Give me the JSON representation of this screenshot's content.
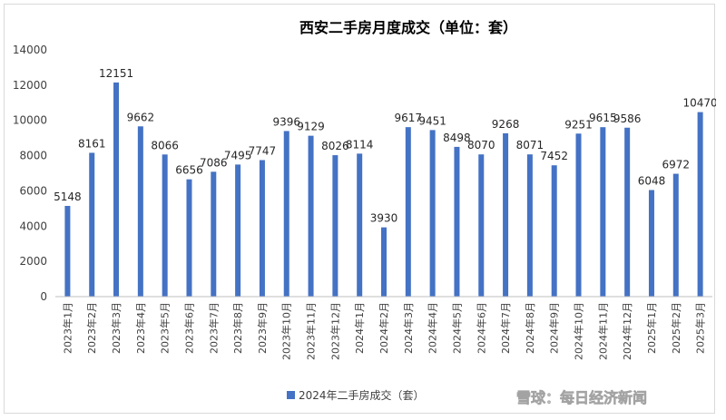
{
  "chart_data": {
    "type": "bar",
    "title": "西安二手房月度成交（单位：套）",
    "xlabel": "",
    "ylabel": "",
    "ylim": [
      0,
      14000
    ],
    "yticks": [
      0,
      2000,
      4000,
      6000,
      8000,
      10000,
      12000,
      14000
    ],
    "grid": false,
    "legend_position": "bottom",
    "bar_color": "#4472c4",
    "categories": [
      "2023年1月",
      "2023年2月",
      "2023年3月",
      "2023年4月",
      "2023年5月",
      "2023年6月",
      "2023年7月",
      "2023年8月",
      "2023年9月",
      "2023年10月",
      "2023年11月",
      "2023年12月",
      "2024年1月",
      "2024年2月",
      "2024年3月",
      "2024年4月",
      "2024年5月",
      "2024年6月",
      "2024年7月",
      "2024年8月",
      "2024年9月",
      "2024年10月",
      "2024年11月",
      "2024年12月",
      "2025年1月",
      "2025年2月",
      "2025年3月"
    ],
    "series": [
      {
        "name": "2024年二手房成交（套）",
        "values": [
          5148,
          8161,
          12151,
          9662,
          8066,
          6656,
          7086,
          7495,
          7747,
          9396,
          9129,
          8026,
          8114,
          3930,
          9617,
          9451,
          8498,
          8070,
          9268,
          8071,
          7452,
          9251,
          9615,
          9586,
          6048,
          6972,
          10470
        ]
      }
    ]
  },
  "watermark": {
    "text": "雪球：每日经济新闻",
    "icon": "snowball-logo-icon"
  }
}
